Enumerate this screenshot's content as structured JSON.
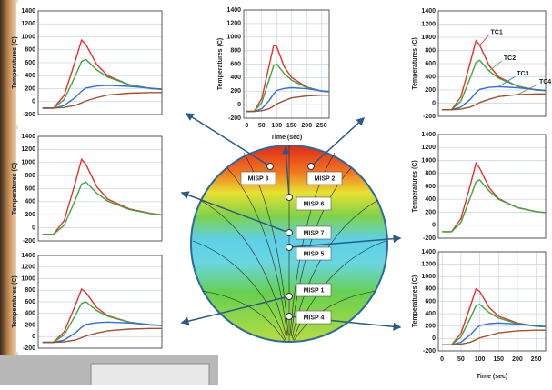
{
  "chart_data": [
    {
      "type": "line",
      "y_label": "Temperatures (C)",
      "x": [
        0,
        25,
        50,
        75,
        90,
        100,
        125,
        150,
        200,
        250,
        275
      ],
      "xlim": [
        -10,
        275
      ],
      "ylim": [
        -200,
        1400
      ],
      "yticks": [
        -200,
        0,
        200,
        400,
        600,
        800,
        1000,
        1200,
        1400
      ],
      "grid": true,
      "series": [
        {
          "color": "#e8302a",
          "values": [
            -100,
            -100,
            95,
            620,
            950,
            880,
            570,
            400,
            260,
            200,
            190
          ]
        },
        {
          "color": "#3aa83a",
          "values": [
            -100,
            -100,
            30,
            390,
            620,
            650,
            490,
            380,
            260,
            200,
            190
          ]
        },
        {
          "color": "#2f6fe0",
          "values": [
            -100,
            -100,
            -60,
            60,
            160,
            210,
            240,
            250,
            235,
            205,
            195
          ]
        },
        {
          "color": "#a0522d",
          "values": [
            -100,
            -100,
            -90,
            -60,
            -20,
            10,
            60,
            100,
            130,
            140,
            140
          ]
        }
      ]
    },
    {
      "type": "line",
      "y_label": "Temperatures (C)",
      "x_label": "Time (sec)",
      "x": [
        0,
        25,
        50,
        75,
        90,
        100,
        125,
        150,
        200,
        250,
        275
      ],
      "xlim": [
        -10,
        275
      ],
      "xticks": [
        0,
        50,
        100,
        150,
        200,
        250
      ],
      "ylim": [
        -200,
        1400
      ],
      "yticks": [
        -200,
        0,
        200,
        400,
        600,
        800,
        1000,
        1200,
        1400
      ],
      "grid": true,
      "series": [
        {
          "color": "#e8302a",
          "values": [
            -100,
            -100,
            90,
            580,
            880,
            860,
            560,
            400,
            260,
            200,
            190
          ]
        },
        {
          "color": "#3aa83a",
          "values": [
            -100,
            -100,
            30,
            370,
            580,
            600,
            460,
            360,
            250,
            200,
            190
          ]
        },
        {
          "color": "#2f6fe0",
          "values": [
            -100,
            -100,
            -60,
            60,
            160,
            210,
            240,
            250,
            235,
            205,
            195
          ]
        },
        {
          "color": "#a0522d",
          "values": [
            -100,
            -100,
            -90,
            -60,
            -20,
            10,
            60,
            100,
            130,
            140,
            140
          ]
        }
      ]
    },
    {
      "type": "line",
      "y_label": "Temperatures (C)",
      "x": [
        0,
        25,
        50,
        75,
        90,
        100,
        125,
        150,
        200,
        250,
        275
      ],
      "xlim": [
        -10,
        275
      ],
      "ylim": [
        -200,
        1400
      ],
      "yticks": [
        -200,
        0,
        200,
        400,
        600,
        800,
        1000,
        1200,
        1400
      ],
      "grid": true,
      "series": [
        {
          "name": "TC1",
          "color": "#e8302a",
          "values": [
            -100,
            -100,
            95,
            620,
            950,
            880,
            570,
            400,
            260,
            200,
            190
          ]
        },
        {
          "name": "TC2",
          "color": "#3aa83a",
          "values": [
            -100,
            -100,
            30,
            390,
            620,
            650,
            490,
            380,
            260,
            200,
            190
          ]
        },
        {
          "name": "TC3",
          "color": "#2f6fe0",
          "values": [
            -100,
            -100,
            -60,
            60,
            160,
            210,
            240,
            250,
            235,
            205,
            195
          ]
        },
        {
          "name": "TC4",
          "color": "#a0522d",
          "values": [
            -100,
            -100,
            -90,
            -60,
            -20,
            10,
            60,
            100,
            130,
            140,
            140
          ]
        }
      ]
    },
    {
      "type": "line",
      "y_label": "Temperatures (C)",
      "x": [
        0,
        25,
        50,
        75,
        90,
        100,
        125,
        150,
        200,
        250,
        275
      ],
      "xlim": [
        -10,
        275
      ],
      "ylim": [
        -200,
        1400
      ],
      "yticks": [
        -200,
        0,
        200,
        400,
        600,
        800,
        1000,
        1200,
        1400
      ],
      "grid": true,
      "series": [
        {
          "color": "#e8302a",
          "values": [
            -100,
            -100,
            110,
            680,
            1050,
            970,
            630,
            440,
            290,
            220,
            200
          ]
        },
        {
          "color": "#3aa83a",
          "values": [
            -100,
            -100,
            40,
            420,
            670,
            700,
            530,
            410,
            280,
            215,
            195
          ]
        }
      ]
    },
    {
      "type": "line",
      "y_label": "Temperatures (C)",
      "x": [
        0,
        25,
        50,
        75,
        90,
        100,
        125,
        150,
        200,
        250,
        275
      ],
      "xlim": [
        -10,
        275
      ],
      "ylim": [
        -200,
        1400
      ],
      "yticks": [
        -200,
        0,
        200,
        400,
        600,
        800,
        1000,
        1200,
        1400
      ],
      "grid": true,
      "series": [
        {
          "color": "#e8302a",
          "values": [
            -100,
            -100,
            100,
            620,
            960,
            880,
            580,
            410,
            270,
            210,
            195
          ]
        },
        {
          "color": "#3aa83a",
          "values": [
            -100,
            -100,
            40,
            430,
            670,
            700,
            530,
            400,
            275,
            210,
            195
          ]
        }
      ]
    },
    {
      "type": "line",
      "y_label": "Temperatures (C)",
      "x": [
        0,
        25,
        50,
        75,
        90,
        100,
        125,
        150,
        200,
        250,
        275
      ],
      "xlim": [
        -10,
        275
      ],
      "ylim": [
        -200,
        1400
      ],
      "yticks": [
        -200,
        0,
        200,
        400,
        600,
        800,
        1000,
        1200,
        1400
      ],
      "grid": true,
      "series": [
        {
          "color": "#e8302a",
          "values": [
            -100,
            -100,
            80,
            530,
            820,
            760,
            500,
            360,
            250,
            200,
            190
          ]
        },
        {
          "color": "#3aa83a",
          "values": [
            -100,
            -100,
            30,
            360,
            570,
            600,
            450,
            350,
            245,
            200,
            190
          ]
        },
        {
          "color": "#2f6fe0",
          "values": [
            -100,
            -100,
            -60,
            60,
            160,
            210,
            240,
            250,
            235,
            205,
            195
          ]
        },
        {
          "color": "#a0522d",
          "values": [
            -100,
            -100,
            -90,
            -60,
            -20,
            10,
            60,
            100,
            130,
            140,
            140
          ]
        }
      ]
    },
    {
      "type": "line",
      "y_label": "Temperatures (C)",
      "x_label": "Time (sec)",
      "x": [
        0,
        25,
        50,
        75,
        90,
        100,
        125,
        150,
        200,
        250,
        275
      ],
      "xlim": [
        -10,
        275
      ],
      "xticks": [
        0,
        50,
        100,
        150,
        200,
        250
      ],
      "ylim": [
        -200,
        1400
      ],
      "yticks": [
        -200,
        0,
        200,
        400,
        600,
        800,
        1000,
        1200,
        1400
      ],
      "grid": true,
      "series": [
        {
          "color": "#e8302a",
          "values": [
            -100,
            -100,
            80,
            520,
            800,
            760,
            500,
            360,
            250,
            200,
            190
          ]
        },
        {
          "color": "#3aa83a",
          "values": [
            -100,
            -100,
            25,
            330,
            530,
            550,
            420,
            330,
            240,
            200,
            190
          ]
        },
        {
          "color": "#2f6fe0",
          "values": [
            -100,
            -100,
            -60,
            60,
            160,
            210,
            240,
            250,
            235,
            205,
            195
          ]
        },
        {
          "color": "#a0522d",
          "values": [
            -100,
            -100,
            -90,
            -60,
            -20,
            10,
            50,
            90,
            125,
            135,
            135
          ]
        }
      ]
    }
  ],
  "diagram": {
    "labels": [
      "MISP 3",
      "MISP 2",
      "MISP 6",
      "MISP 7",
      "MISP 5",
      "MISP 1",
      "MISP 4"
    ]
  }
}
